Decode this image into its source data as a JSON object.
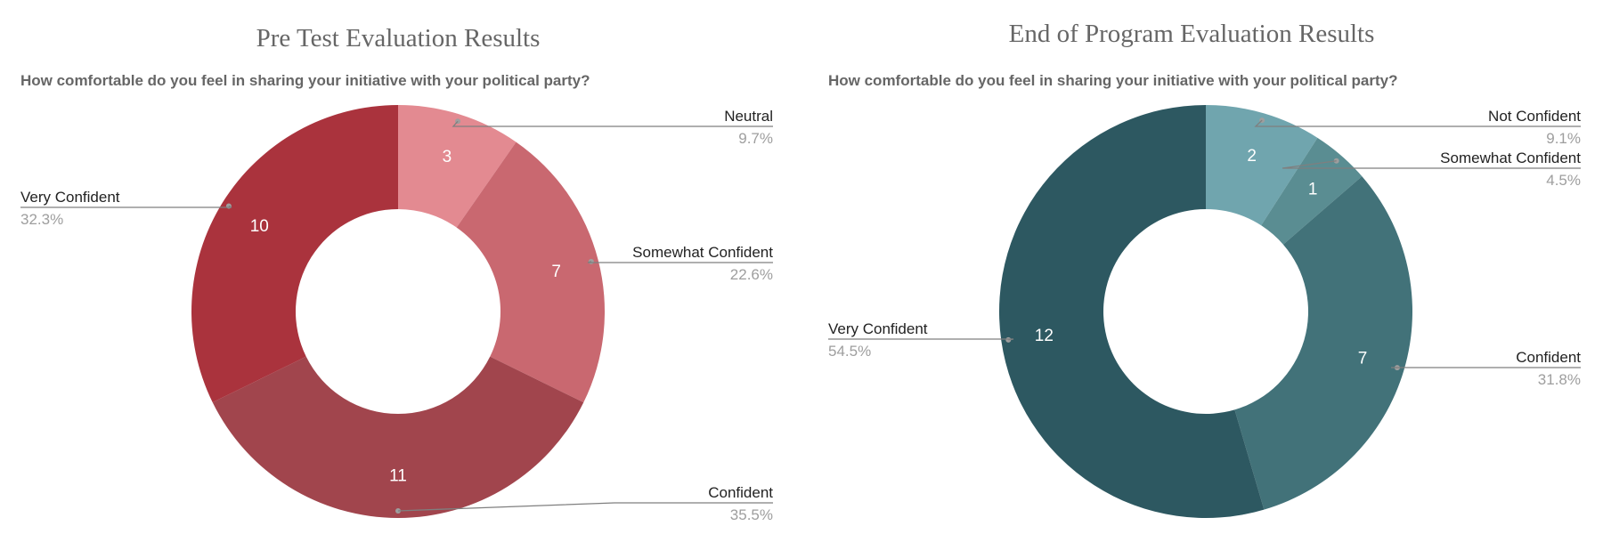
{
  "chart_data": [
    {
      "type": "pie",
      "donut": true,
      "title": "Pre Test Evaluation Results",
      "subtitle": "How comfortable do you feel in sharing your initiative with your political party?",
      "slices": [
        {
          "label": "Neutral",
          "value": 3,
          "value_label": "3",
          "percent": "9.7%",
          "color": "#e38a91"
        },
        {
          "label": "Somewhat Confident",
          "value": 7,
          "value_label": "7",
          "percent": "22.6%",
          "color": "#c96870"
        },
        {
          "label": "Confident",
          "value": 11,
          "value_label": "11",
          "percent": "35.5%",
          "color": "#a1454d"
        },
        {
          "label": "Very Confident",
          "value": 10,
          "value_label": "10",
          "percent": "32.3%",
          "color": "#aa333d"
        }
      ]
    },
    {
      "type": "pie",
      "donut": true,
      "title": "End of Program Evaluation Results",
      "subtitle": "How comfortable do you feel in sharing your initiative with your political party?",
      "slices": [
        {
          "label": "Not Confident",
          "value": 2,
          "value_label": "2",
          "percent": "9.1%",
          "color": "#70a5ae"
        },
        {
          "label": "Somewhat Confident",
          "value": 1,
          "value_label": "1",
          "percent": "4.5%",
          "color": "#5a8d92"
        },
        {
          "label": "Confident",
          "value": 7,
          "value_label": "7",
          "percent": "31.8%",
          "color": "#427279"
        },
        {
          "label": "Very Confident",
          "value": 12,
          "value_label": "12",
          "percent": "54.5%",
          "color": "#2d5861"
        }
      ]
    }
  ]
}
